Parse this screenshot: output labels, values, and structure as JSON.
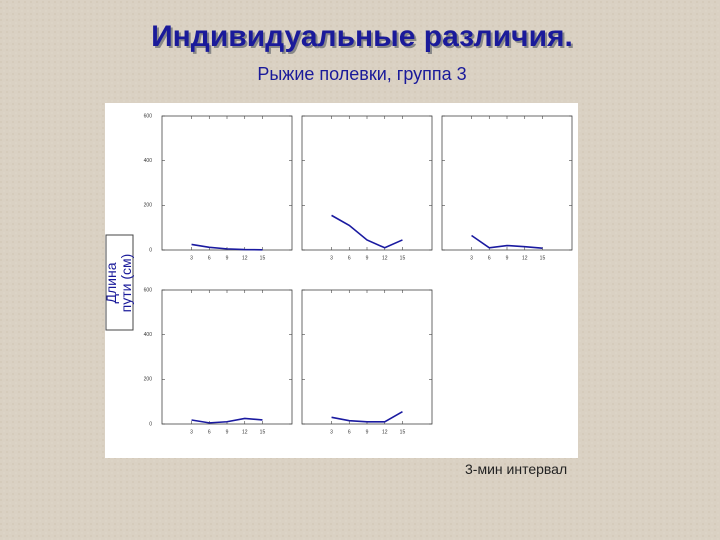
{
  "title": "Индивидуальные различия.",
  "subtitle": "Рыжие полевки, группа 3",
  "y_label": "Длина пути (см)",
  "x_label": "3-мин интервал",
  "chart_data": [
    {
      "type": "line",
      "x": [
        3,
        6,
        9,
        12,
        15
      ],
      "values": [
        25,
        12,
        5,
        2,
        1
      ],
      "color": "#1a1aa0",
      "xlim": [
        -2,
        20
      ],
      "ylim": [
        0,
        600
      ],
      "xticks": [
        3,
        6,
        9,
        12,
        15
      ],
      "yticks": [
        0,
        200,
        400,
        600
      ]
    },
    {
      "type": "line",
      "x": [
        3,
        6,
        9,
        12,
        15
      ],
      "values": [
        155,
        110,
        45,
        10,
        45
      ],
      "color": "#1a1aa0",
      "xlim": [
        -2,
        20
      ],
      "ylim": [
        0,
        600
      ],
      "xticks": [
        3,
        6,
        9,
        12,
        15
      ],
      "yticks": [
        0,
        200,
        400,
        600
      ]
    },
    {
      "type": "line",
      "x": [
        3,
        6,
        9,
        12,
        15
      ],
      "values": [
        65,
        10,
        20,
        15,
        8
      ],
      "color": "#1a1aa0",
      "xlim": [
        -2,
        20
      ],
      "ylim": [
        0,
        600
      ],
      "xticks": [
        3,
        6,
        9,
        12,
        15
      ],
      "yticks": [
        0,
        200,
        400,
        600
      ]
    },
    {
      "type": "line",
      "x": [
        3,
        6,
        9,
        12,
        15
      ],
      "values": [
        18,
        5,
        10,
        25,
        18
      ],
      "color": "#1a1aa0",
      "xlim": [
        -2,
        20
      ],
      "ylim": [
        0,
        600
      ],
      "xticks": [
        3,
        6,
        9,
        12,
        15
      ],
      "yticks": [
        0,
        200,
        400,
        600
      ]
    },
    {
      "type": "line",
      "x": [
        3,
        6,
        9,
        12,
        15
      ],
      "values": [
        30,
        15,
        10,
        10,
        55
      ],
      "color": "#1a1aa0",
      "xlim": [
        -2,
        20
      ],
      "ylim": [
        0,
        600
      ],
      "xticks": [
        3,
        6,
        9,
        12,
        15
      ],
      "yticks": [
        0,
        200,
        400,
        600
      ]
    }
  ]
}
